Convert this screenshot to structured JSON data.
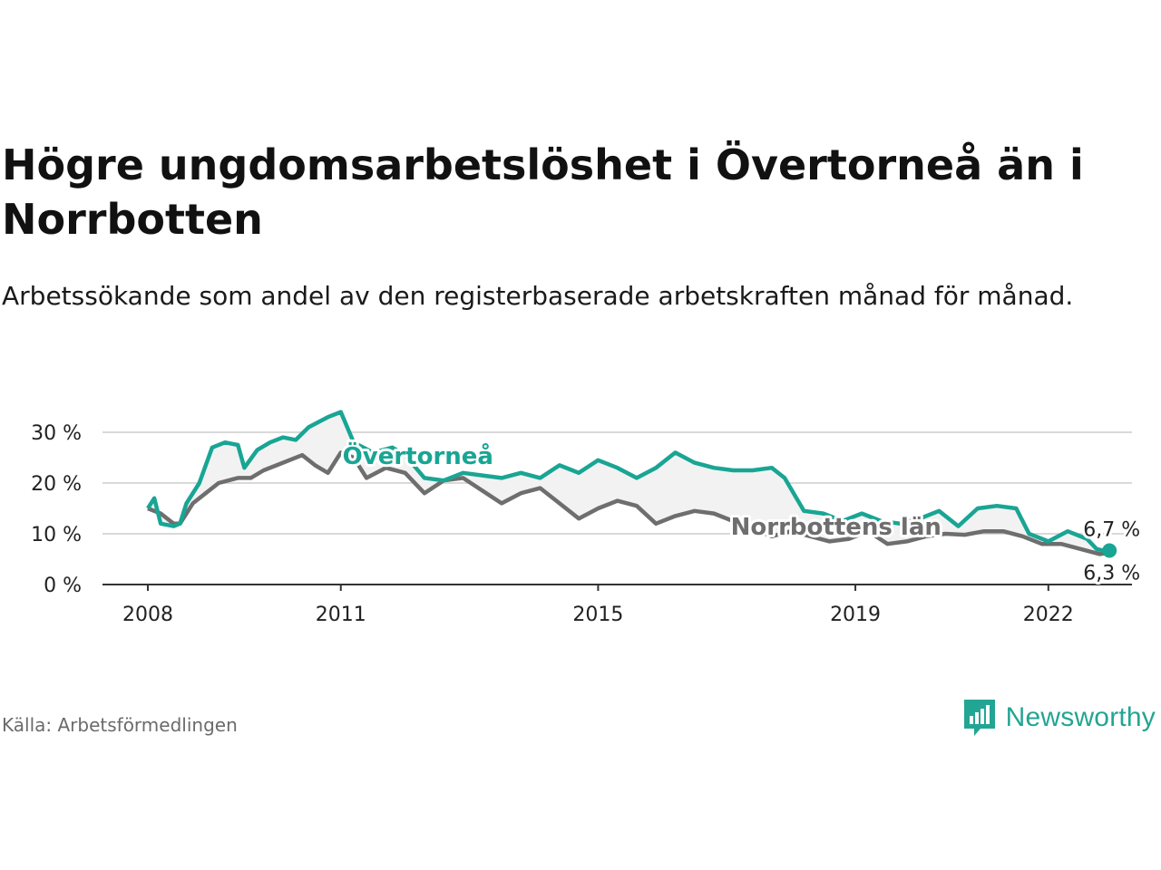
{
  "header": {
    "title": "Högre ungdomsarbetslöshet i Övertorneå än i Norrbotten",
    "subtitle": "Arbetssökande som andel av den registerbaserade arbetskraften månad för månad."
  },
  "footer": {
    "source": "Källa: Arbetsförmedlingen",
    "brand": "Newsworthy"
  },
  "colors": {
    "overtornea": "#19a594",
    "norrbotten": "#6e6e6e",
    "band": "#f2f2f2",
    "grid": "#d9d9d9"
  },
  "chart_data": {
    "type": "line",
    "title": "Högre ungdomsarbetslöshet i Övertorneå än i Norrbotten",
    "subtitle": "Arbetssökande som andel av den registerbaserade arbetskraften månad för månad.",
    "xlabel": "",
    "ylabel": "",
    "xlim": [
      2008.0,
      2023.3
    ],
    "ylim": [
      0,
      30
    ],
    "y_ticks": [
      0,
      10,
      20,
      30
    ],
    "y_tick_labels": [
      "0 %",
      "10 %",
      "20 %",
      "30 %"
    ],
    "x_ticks": [
      2008,
      2011,
      2015,
      2019,
      2022
    ],
    "x_tick_labels": [
      "2008",
      "2011",
      "2015",
      "2019",
      "2022"
    ],
    "grid": true,
    "series": [
      {
        "name": "Övertorneå",
        "label": "Övertorneå",
        "end_label": "6,7 %",
        "x": [
          2008.0,
          2008.1,
          2008.2,
          2008.4,
          2008.5,
          2008.6,
          2008.8,
          2009.0,
          2009.2,
          2009.4,
          2009.5,
          2009.7,
          2009.9,
          2010.1,
          2010.3,
          2010.5,
          2010.8,
          2011.0,
          2011.2,
          2011.5,
          2011.8,
          2012.0,
          2012.3,
          2012.6,
          2012.9,
          2013.2,
          2013.5,
          2013.8,
          2014.1,
          2014.4,
          2014.7,
          2015.0,
          2015.3,
          2015.6,
          2015.9,
          2016.2,
          2016.5,
          2016.8,
          2017.1,
          2017.4,
          2017.7,
          2017.9,
          2018.2,
          2018.5,
          2018.8,
          2019.1,
          2019.4,
          2019.7,
          2020.0,
          2020.3,
          2020.6,
          2020.9,
          2021.2,
          2021.5,
          2021.7,
          2022.0,
          2022.3,
          2022.6,
          2022.75,
          2022.85,
          2022.95
        ],
        "values": [
          15.0,
          17.0,
          12.0,
          11.5,
          12.0,
          16.0,
          20.0,
          27.0,
          28.0,
          27.5,
          23.0,
          26.5,
          28.0,
          29.0,
          28.5,
          31.0,
          33.0,
          34.0,
          28.0,
          26.0,
          27.0,
          25.5,
          21.0,
          20.5,
          22.0,
          21.5,
          21.0,
          22.0,
          21.0,
          23.5,
          22.0,
          24.5,
          23.0,
          21.0,
          23.0,
          26.0,
          24.0,
          23.0,
          22.5,
          22.5,
          23.0,
          21.0,
          14.5,
          14.0,
          12.5,
          14.0,
          12.5,
          12.0,
          13.0,
          14.5,
          11.5,
          15.0,
          15.5,
          15.0,
          10.0,
          8.5,
          10.5,
          9.0,
          7.0,
          6.7,
          6.7
        ]
      },
      {
        "name": "Norrbottens län",
        "label": "Norrbottens län",
        "end_label": "6,3 %",
        "x": [
          2008.0,
          2008.2,
          2008.4,
          2008.5,
          2008.7,
          2008.9,
          2009.1,
          2009.4,
          2009.6,
          2009.8,
          2010.1,
          2010.4,
          2010.6,
          2010.8,
          2011.0,
          2011.2,
          2011.4,
          2011.7,
          2012.0,
          2012.3,
          2012.6,
          2012.9,
          2013.2,
          2013.5,
          2013.8,
          2014.1,
          2014.4,
          2014.7,
          2015.0,
          2015.3,
          2015.6,
          2015.9,
          2016.2,
          2016.5,
          2016.8,
          2017.1,
          2017.4,
          2017.7,
          2018.0,
          2018.3,
          2018.6,
          2018.9,
          2019.2,
          2019.5,
          2019.8,
          2020.1,
          2020.4,
          2020.7,
          2021.0,
          2021.3,
          2021.6,
          2021.9,
          2022.2,
          2022.5,
          2022.8,
          2022.95
        ],
        "values": [
          15.0,
          14.0,
          12.0,
          12.0,
          16.0,
          18.0,
          20.0,
          21.0,
          21.0,
          22.5,
          24.0,
          25.5,
          23.5,
          22.0,
          26.0,
          25.0,
          21.0,
          23.0,
          22.0,
          18.0,
          20.5,
          21.0,
          18.5,
          16.0,
          18.0,
          19.0,
          16.0,
          13.0,
          15.0,
          16.5,
          15.5,
          12.0,
          13.5,
          14.5,
          14.0,
          12.5,
          11.0,
          9.5,
          10.5,
          9.5,
          8.5,
          9.0,
          10.5,
          8.0,
          8.5,
          9.5,
          10.0,
          9.8,
          10.5,
          10.5,
          9.5,
          8.0,
          8.0,
          7.0,
          6.0,
          6.3
        ]
      }
    ]
  }
}
